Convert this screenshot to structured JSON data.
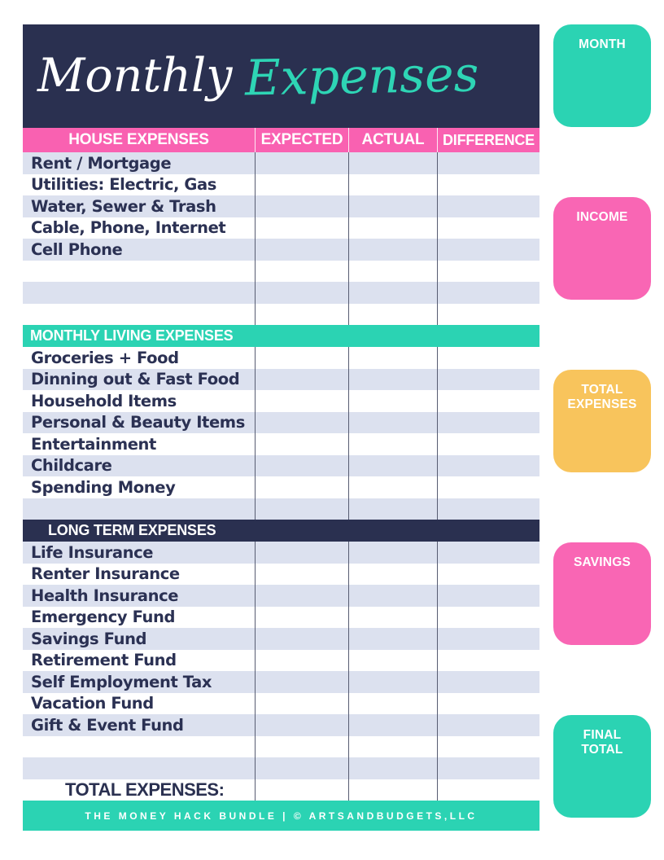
{
  "title": {
    "word1": "Monthly",
    "word2": "Expenses"
  },
  "table": {
    "value_columns": [
      "EXPECTED",
      "ACTUAL",
      "DIFFERENCE"
    ],
    "sections": [
      {
        "label": "HOUSE EXPENSES",
        "accent_color": "#f961b1",
        "rows": [
          "Rent / Mortgage",
          "Utilities: Electric, Gas",
          "Water, Sewer & Trash",
          "Cable, Phone, Internet",
          "Cell Phone",
          "",
          "",
          ""
        ]
      },
      {
        "label": "MONTHLY LIVING EXPENSES",
        "accent_color": "#2bd3b3",
        "rows": [
          "Groceries + Food",
          "Dinning out & Fast Food",
          "Household Items",
          "Personal & Beauty Items",
          "Entertainment",
          "Childcare",
          "Spending Money",
          ""
        ]
      },
      {
        "label": "LONG TERM EXPENSES",
        "accent_color": "#2a3050",
        "rows": [
          "Life Insurance",
          "Renter Insurance",
          "Health Insurance",
          "Emergency Fund",
          "Savings Fund",
          "Retirement Fund",
          "Self Employment Tax",
          "Vacation Fund",
          "Gift & Event Fund",
          "",
          ""
        ],
        "total_label": "TOTAL EXPENSES:"
      }
    ]
  },
  "sidebar": [
    {
      "label": "MONTH",
      "color": "#2bd3b3"
    },
    {
      "label": "INCOME",
      "color": "#f966b4"
    },
    {
      "label": "TOTAL\nEXPENSES",
      "color": "#f8c45c"
    },
    {
      "label": "SAVINGS",
      "color": "#f966b4"
    },
    {
      "label": "FINAL\nTOTAL",
      "color": "#2bd3b3"
    }
  ],
  "footer": {
    "text": "THE MONEY HACK BUNDLE |  © ARTSANDBUDGETS,LLC"
  },
  "colors": {
    "navy": "#2a3050",
    "pink": "#f961b1",
    "teal": "#2bd3b3",
    "yellow": "#f8c45c",
    "row_shade": "#dce1ef",
    "row_text": "#2b3153"
  }
}
